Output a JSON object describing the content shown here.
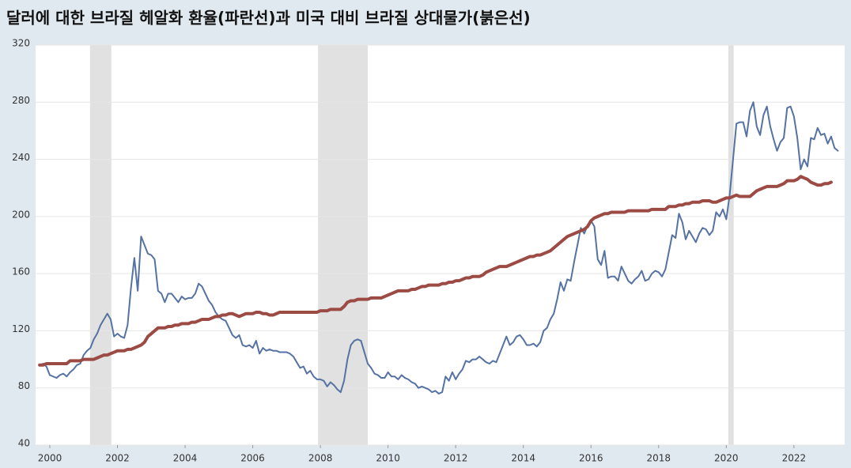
{
  "chart_data": {
    "type": "line",
    "title": "달러에 대한 브라질 헤알화 환율(파란선)과 미국 대비 브라질 상대물가(붉은선)",
    "xlim": [
      1999.58,
      2023.5
    ],
    "xticks": [
      2000,
      2002,
      2004,
      2006,
      2008,
      2010,
      2012,
      2014,
      2016,
      2018,
      2020,
      2022
    ],
    "ylim": [
      40,
      320
    ],
    "yticks": [
      40,
      80,
      120,
      160,
      200,
      240,
      280,
      320
    ],
    "grid": true,
    "recessions": [
      [
        2001.19,
        2001.82
      ],
      [
        2007.93,
        2009.4
      ],
      [
        2020.06,
        2020.22
      ]
    ],
    "recession_color": "#e1e1e1",
    "x": [
      1999.7,
      1999.8,
      1999.9,
      2000.0,
      2000.1,
      2000.2,
      2000.3,
      2000.4,
      2000.5,
      2000.6,
      2000.7,
      2000.8,
      2000.9,
      2001.0,
      2001.1,
      2001.2,
      2001.3,
      2001.4,
      2001.5,
      2001.6,
      2001.7,
      2001.8,
      2001.9,
      2002.0,
      2002.1,
      2002.2,
      2002.3,
      2002.4,
      2002.5,
      2002.6,
      2002.7,
      2002.8,
      2002.9,
      2003.0,
      2003.1,
      2003.2,
      2003.3,
      2003.4,
      2003.5,
      2003.6,
      2003.7,
      2003.8,
      2003.9,
      2004.0,
      2004.1,
      2004.2,
      2004.3,
      2004.4,
      2004.5,
      2004.6,
      2004.7,
      2004.8,
      2004.9,
      2005.0,
      2005.1,
      2005.2,
      2005.3,
      2005.4,
      2005.5,
      2005.6,
      2005.7,
      2005.8,
      2005.9,
      2006.0,
      2006.1,
      2006.2,
      2006.3,
      2006.4,
      2006.5,
      2006.6,
      2006.7,
      2006.8,
      2006.9,
      2007.0,
      2007.1,
      2007.2,
      2007.3,
      2007.4,
      2007.5,
      2007.6,
      2007.7,
      2007.8,
      2007.9,
      2008.0,
      2008.1,
      2008.2,
      2008.3,
      2008.4,
      2008.5,
      2008.6,
      2008.7,
      2008.8,
      2008.9,
      2009.0,
      2009.1,
      2009.2,
      2009.3,
      2009.4,
      2009.5,
      2009.6,
      2009.7,
      2009.8,
      2009.9,
      2010.0,
      2010.1,
      2010.2,
      2010.3,
      2010.4,
      2010.5,
      2010.6,
      2010.7,
      2010.8,
      2010.9,
      2011.0,
      2011.1,
      2011.2,
      2011.3,
      2011.4,
      2011.5,
      2011.6,
      2011.7,
      2011.8,
      2011.9,
      2012.0,
      2012.1,
      2012.2,
      2012.3,
      2012.4,
      2012.5,
      2012.6,
      2012.7,
      2012.8,
      2012.9,
      2013.0,
      2013.1,
      2013.2,
      2013.3,
      2013.4,
      2013.5,
      2013.6,
      2013.7,
      2013.8,
      2013.9,
      2014.0,
      2014.1,
      2014.2,
      2014.3,
      2014.4,
      2014.5,
      2014.6,
      2014.7,
      2014.8,
      2014.9,
      2015.0,
      2015.1,
      2015.2,
      2015.3,
      2015.4,
      2015.5,
      2015.6,
      2015.7,
      2015.8,
      2015.9,
      2016.0,
      2016.1,
      2016.2,
      2016.3,
      2016.4,
      2016.5,
      2016.6,
      2016.7,
      2016.8,
      2016.9,
      2017.0,
      2017.1,
      2017.2,
      2017.3,
      2017.4,
      2017.5,
      2017.6,
      2017.7,
      2017.8,
      2017.9,
      2018.0,
      2018.1,
      2018.2,
      2018.3,
      2018.4,
      2018.5,
      2018.6,
      2018.7,
      2018.8,
      2018.9,
      2019.0,
      2019.1,
      2019.2,
      2019.3,
      2019.4,
      2019.5,
      2019.6,
      2019.7,
      2019.8,
      2019.9,
      2020.0,
      2020.1,
      2020.2,
      2020.3,
      2020.4,
      2020.5,
      2020.6,
      2020.7,
      2020.8,
      2020.9,
      2021.0,
      2021.1,
      2021.2,
      2021.3,
      2021.4,
      2021.5,
      2021.6,
      2021.7,
      2021.8,
      2021.9,
      2022.0,
      2022.1,
      2022.2,
      2022.3,
      2022.4,
      2022.5,
      2022.6,
      2022.7,
      2022.8,
      2022.9,
      2023.0,
      2023.1,
      2023.2,
      2023.3
    ],
    "series": [
      {
        "color": "#5572a3",
        "width": 2,
        "values": [
          96,
          97,
          95,
          89,
          88,
          87,
          89,
          90,
          88,
          91,
          93,
          96,
          97,
          103,
          106,
          108,
          114,
          118,
          124,
          128,
          132,
          128,
          116,
          118,
          116,
          115,
          124,
          150,
          171,
          148,
          186,
          180,
          174,
          173,
          170,
          148,
          146,
          140,
          146,
          146,
          143,
          140,
          144,
          142,
          143,
          143,
          146,
          153,
          151,
          146,
          141,
          138,
          133,
          130,
          128,
          127,
          122,
          117,
          115,
          117,
          110,
          109,
          110,
          108,
          113,
          104,
          108,
          106,
          107,
          106,
          106,
          105,
          105,
          105,
          104,
          102,
          98,
          94,
          95,
          90,
          92,
          88,
          86,
          86,
          85,
          81,
          84,
          82,
          79,
          77,
          85,
          100,
          110,
          113,
          114,
          113,
          105,
          97,
          94,
          90,
          89,
          87,
          87,
          91,
          88,
          88,
          86,
          89,
          87,
          86,
          84,
          83,
          80,
          81,
          80,
          79,
          77,
          78,
          76,
          77,
          88,
          85,
          91,
          86,
          90,
          93,
          99,
          98,
          100,
          100,
          102,
          100,
          98,
          97,
          99,
          98,
          104,
          110,
          116,
          110,
          112,
          116,
          117,
          114,
          110,
          110,
          111,
          109,
          112,
          120,
          122,
          128,
          132,
          142,
          154,
          148,
          156,
          155,
          168,
          180,
          192,
          188,
          194,
          197,
          193,
          170,
          166,
          176,
          157,
          158,
          158,
          155,
          165,
          160,
          155,
          153,
          156,
          158,
          162,
          155,
          156,
          160,
          162,
          161,
          158,
          163,
          175,
          187,
          185,
          202,
          196,
          184,
          190,
          186,
          182,
          188,
          192,
          191,
          187,
          190,
          203,
          200,
          205,
          198,
          215,
          240,
          265,
          266,
          266,
          256,
          274,
          280,
          263,
          257,
          271,
          277,
          263,
          254,
          246,
          252,
          255,
          276,
          277,
          270,
          255,
          233,
          240,
          235,
          255,
          254,
          262,
          257,
          258,
          251,
          256,
          248,
          246
        ]
      },
      {
        "color": "#9c4a44",
        "width": 4,
        "values": [
          96,
          96,
          97,
          97,
          97,
          97,
          97,
          97,
          97,
          99,
          99,
          99,
          99,
          100,
          100,
          100,
          100,
          101,
          102,
          103,
          103,
          104,
          105,
          106,
          106,
          106,
          107,
          107,
          108,
          109,
          110,
          112,
          116,
          118,
          120,
          122,
          122,
          122,
          123,
          123,
          124,
          124,
          125,
          125,
          125,
          126,
          126,
          127,
          128,
          128,
          128,
          129,
          130,
          130,
          131,
          131,
          132,
          132,
          131,
          130,
          131,
          132,
          132,
          132,
          133,
          133,
          132,
          132,
          131,
          131,
          132,
          133,
          133,
          133,
          133,
          133,
          133,
          133,
          133,
          133,
          133,
          133,
          133,
          134,
          134,
          134,
          135,
          135,
          135,
          135,
          137,
          140,
          141,
          141,
          142,
          142,
          142,
          142,
          143,
          143,
          143,
          143,
          144,
          145,
          146,
          147,
          148,
          148,
          148,
          148,
          149,
          149,
          150,
          151,
          151,
          152,
          152,
          152,
          152,
          153,
          153,
          154,
          154,
          155,
          155,
          156,
          157,
          157,
          158,
          158,
          158,
          159,
          161,
          162,
          163,
          164,
          165,
          165,
          165,
          166,
          167,
          168,
          169,
          170,
          171,
          172,
          172,
          173,
          173,
          174,
          175,
          176,
          178,
          180,
          182,
          184,
          186,
          187,
          188,
          189,
          190,
          191,
          193,
          197,
          199,
          200,
          201,
          202,
          202,
          203,
          203,
          203,
          203,
          203,
          204,
          204,
          204,
          204,
          204,
          204,
          204,
          205,
          205,
          205,
          205,
          205,
          207,
          207,
          207,
          208,
          208,
          209,
          209,
          210,
          210,
          210,
          211,
          211,
          211,
          210,
          210,
          211,
          212,
          213,
          213,
          214,
          215,
          214,
          214,
          214,
          214,
          216,
          218,
          219,
          220,
          221,
          221,
          221,
          221,
          222,
          223,
          225,
          225,
          225,
          226,
          228,
          227,
          226,
          224,
          223,
          222,
          222,
          223,
          223,
          224,
          null,
          null
        ]
      }
    ]
  }
}
